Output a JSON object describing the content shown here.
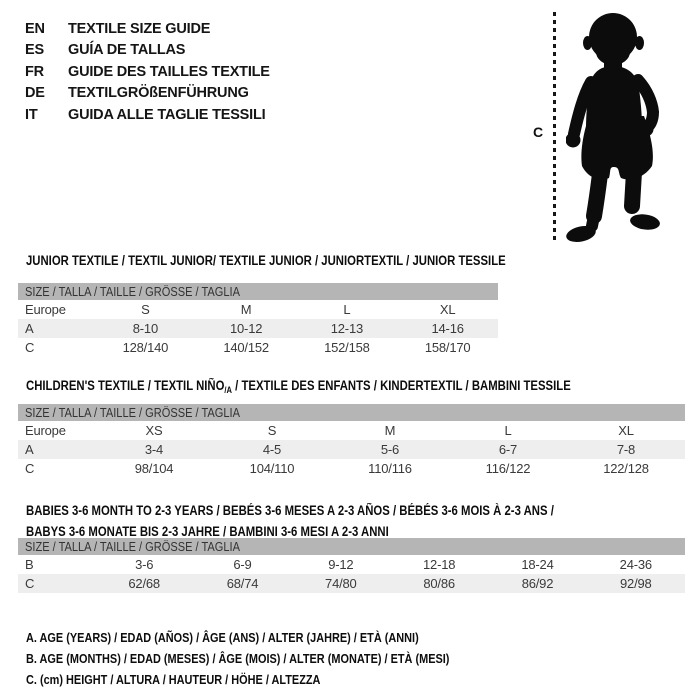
{
  "header_languages": [
    {
      "code": "EN",
      "label": "TEXTILE SIZE GUIDE"
    },
    {
      "code": "ES",
      "label": "GUÍA DE TALLAS"
    },
    {
      "code": "FR",
      "label": "GUIDE DES TAILLES TEXTILE"
    },
    {
      "code": "DE",
      "label": "TEXTILGRÖßENFÜHRUNG"
    },
    {
      "code": "IT",
      "label": "GUIDA ALLE TAGLIE TESSILI"
    }
  ],
  "figure": {
    "measure_label": "C"
  },
  "sections": [
    {
      "title": "JUNIOR TEXTILE / TEXTIL JUNIOR/ TEXTILE JUNIOR / JUNIORTEXTIL / JUNIOR TESSILE",
      "table": {
        "header": "SIZE / TALLA / TAILLE / GRÖSSE / TAGLIA",
        "rows": [
          {
            "label": "Europe",
            "cells": [
              "S",
              "M",
              "L",
              "XL"
            ],
            "striped": false
          },
          {
            "label": "A",
            "cells": [
              "8-10",
              "10-12",
              "12-13",
              "14-16"
            ],
            "striped": true
          },
          {
            "label": "C",
            "cells": [
              "128/140",
              "140/152",
              "152/158",
              "158/170"
            ],
            "striped": false
          }
        ]
      }
    },
    {
      "title_pre": "CHILDREN'S TEXTILE / TEXTIL NIÑO",
      "title_sub": "/A",
      "title_post": " / TEXTILE DES ENFANTS / KINDERTEXTIL / BAMBINI TESSILE",
      "table": {
        "header": "SIZE / TALLA / TAILLE / GRÖSSE / TAGLIA",
        "rows": [
          {
            "label": "Europe",
            "cells": [
              "XS",
              "S",
              "M",
              "L",
              "XL"
            ],
            "striped": false
          },
          {
            "label": "A",
            "cells": [
              "3-4",
              "4-5",
              "5-6",
              "6-7",
              "7-8"
            ],
            "striped": true
          },
          {
            "label": "C",
            "cells": [
              "98/104",
              "104/110",
              "110/116",
              "116/122",
              "122/128"
            ],
            "striped": false
          }
        ]
      }
    },
    {
      "title_line1": "BABIES 3-6 MONTH TO 2-3 YEARS / BEBÉS 3-6 MESES A 2-3 AÑOS / BÉBÉS 3-6 MOIS À 2-3 ANS /",
      "title_line2": "BABYS 3-6 MONATE BIS 2-3 JAHRE / BAMBINI 3-6 MESI A 2-3 ANNI",
      "table": {
        "header": "SIZE / TALLA / TAILLE / GRÖSSE / TAGLIA",
        "rows": [
          {
            "label": "B",
            "cells": [
              "3-6",
              "6-9",
              "9-12",
              "12-18",
              "18-24",
              "24-36"
            ],
            "striped": false
          },
          {
            "label": "C",
            "cells": [
              "62/68",
              "68/74",
              "74/80",
              "80/86",
              "86/92",
              "92/98"
            ],
            "striped": true
          }
        ]
      }
    }
  ],
  "footnotes": [
    "A. AGE (YEARS) / EDAD (AÑOS) / ÂGE (ANS) / ALTER (JAHRE) / ETÀ (ANNI)",
    "B. AGE (MONTHS) / EDAD (MESES) / ÂGE (MOIS) / ALTER (MONATE) / ETÀ (MESI)",
    "C. (cm) HEIGHT / ALTURA / HAUTEUR / HÖHE / ALTEZZA"
  ],
  "colors": {
    "header_bar": "#b5b5b5",
    "stripe": "#eeeeee",
    "silhouette": "#0c0c0c",
    "title_text": "#0d0d0d",
    "body_text": "#3a3a3a"
  }
}
